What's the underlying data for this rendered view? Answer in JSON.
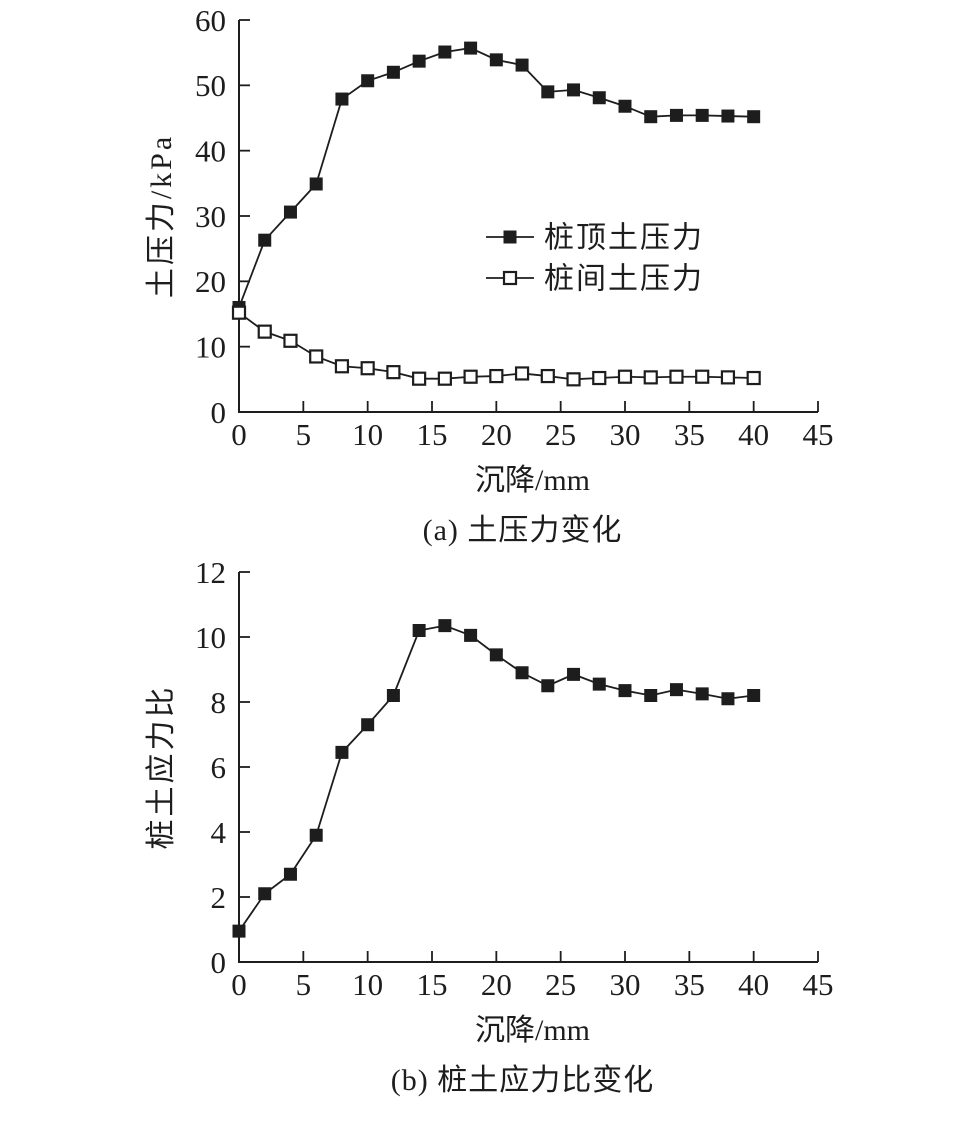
{
  "colors": {
    "ink": "#1d1d1d",
    "background": "#ffffff",
    "open_marker_fill": "#ffffff"
  },
  "chart_data": [
    {
      "type": "line",
      "panel": "a",
      "subtitle": "(a) 土压力变化",
      "xlabel": "沉降/mm",
      "ylabel": "土压力/kPa",
      "xlim": [
        0,
        45
      ],
      "ylim": [
        0,
        60
      ],
      "xticks": [
        0,
        5,
        10,
        15,
        20,
        25,
        30,
        35,
        40,
        45
      ],
      "yticks": [
        0,
        10,
        20,
        30,
        40,
        50,
        60
      ],
      "grid": false,
      "legend_position": "center-right",
      "legend": [
        {
          "label": "桩顶土压力",
          "marker": "filled-square"
        },
        {
          "label": "桩间土压力",
          "marker": "open-square"
        }
      ],
      "series": [
        {
          "name": "桩顶土压力",
          "marker": "filled-square",
          "color": "#1d1d1d",
          "x": [
            0,
            2,
            4,
            6,
            8,
            10,
            12,
            14,
            16,
            18,
            20,
            22,
            24,
            26,
            28,
            30,
            32,
            34,
            36,
            38,
            40
          ],
          "y": [
            16,
            26.3,
            30.6,
            34.9,
            47.9,
            50.7,
            52.0,
            53.7,
            55.1,
            55.7,
            53.9,
            53.1,
            49.0,
            49.3,
            48.1,
            46.8,
            45.2,
            45.4,
            45.4,
            45.3,
            45.2
          ]
        },
        {
          "name": "桩间土压力",
          "marker": "open-square",
          "color": "#1d1d1d",
          "x": [
            0,
            2,
            4,
            6,
            8,
            10,
            12,
            14,
            16,
            18,
            20,
            22,
            24,
            26,
            28,
            30,
            32,
            34,
            36,
            38,
            40
          ],
          "y": [
            15.2,
            12.3,
            10.9,
            8.5,
            7.0,
            6.7,
            6.1,
            5.1,
            5.1,
            5.4,
            5.5,
            5.9,
            5.5,
            5.0,
            5.2,
            5.4,
            5.3,
            5.4,
            5.4,
            5.3,
            5.2
          ]
        }
      ]
    },
    {
      "type": "line",
      "panel": "b",
      "subtitle": "(b) 桩土应力比变化",
      "xlabel": "沉降/mm",
      "ylabel": "桩土应力比",
      "xlim": [
        0,
        45
      ],
      "ylim": [
        0,
        12
      ],
      "xticks": [
        0,
        5,
        10,
        15,
        20,
        25,
        30,
        35,
        40,
        45
      ],
      "yticks": [
        0,
        2,
        4,
        6,
        8,
        10,
        12
      ],
      "grid": false,
      "series": [
        {
          "name": "桩土应力比",
          "marker": "filled-square",
          "color": "#1d1d1d",
          "x": [
            0,
            2,
            4,
            6,
            8,
            10,
            12,
            14,
            16,
            18,
            20,
            22,
            24,
            26,
            28,
            30,
            32,
            34,
            36,
            38,
            40
          ],
          "y": [
            0.95,
            2.1,
            2.7,
            3.9,
            6.45,
            7.3,
            8.2,
            10.2,
            10.35,
            10.05,
            9.45,
            8.9,
            8.5,
            8.85,
            8.55,
            8.35,
            8.2,
            8.38,
            8.25,
            8.1,
            8.2
          ]
        }
      ]
    }
  ]
}
